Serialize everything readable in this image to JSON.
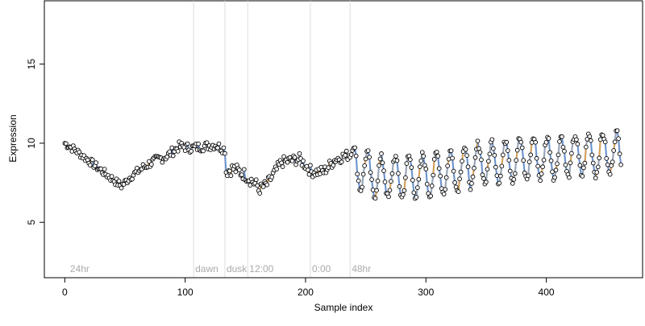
{
  "chart_data": {
    "type": "scatter",
    "xlabel": "Sample index",
    "ylabel": "Expression",
    "xlim": [
      -17,
      480
    ],
    "ylim": [
      1.5,
      19
    ],
    "xticks": [
      0,
      100,
      200,
      300,
      400
    ],
    "yticks": [
      5,
      10,
      15
    ],
    "grid": false,
    "colors": {
      "line": "#9aa6b8",
      "blue": "#5b8fd9",
      "orange": "#f0a030",
      "point_stroke": "#000000",
      "point_fill": "#ffffff",
      "vline": "#dddddd",
      "annotation": "#aaaaaa"
    },
    "annotations": [
      {
        "x": 3,
        "label": "24hr"
      },
      {
        "x": 107,
        "label": "dawn"
      },
      {
        "x": 133,
        "label": "dusk"
      },
      {
        "x": 152,
        "label": "12:00"
      },
      {
        "x": 204,
        "label": "0:00"
      },
      {
        "x": 237,
        "label": "48hr"
      }
    ],
    "vlines": [
      107,
      133,
      152,
      204,
      237
    ],
    "segments": [
      {
        "x0": 0,
        "x1": 60,
        "trend": [
          [
            0,
            10.0
          ],
          [
            8,
            9.6
          ],
          [
            20,
            8.9
          ],
          [
            35,
            8.0
          ],
          [
            47,
            7.3
          ],
          [
            55,
            7.9
          ],
          [
            60,
            8.2
          ]
        ],
        "amp": 0.25
      },
      {
        "x0": 60,
        "x1": 133,
        "trend": [
          [
            60,
            8.2
          ],
          [
            72,
            8.8
          ],
          [
            85,
            9.2
          ],
          [
            95,
            9.8
          ],
          [
            105,
            9.7
          ],
          [
            115,
            9.8
          ],
          [
            125,
            9.9
          ],
          [
            133,
            9.6
          ]
        ],
        "amp": 0.3
      },
      {
        "x0": 133,
        "x1": 160,
        "trend": [
          [
            133,
            8.2
          ],
          [
            140,
            8.4
          ],
          [
            150,
            8.0
          ],
          [
            160,
            7.3
          ]
        ],
        "amp": 0.4
      },
      {
        "x0": 160,
        "x1": 237,
        "trend": [
          [
            160,
            7.0
          ],
          [
            168,
            7.4
          ],
          [
            180,
            8.8
          ],
          [
            195,
            9.0
          ],
          [
            205,
            8.2
          ],
          [
            215,
            8.2
          ],
          [
            225,
            9.0
          ],
          [
            237,
            9.3
          ]
        ],
        "amp": 0.35
      },
      {
        "x0": 237,
        "x1": 462,
        "trend": [
          [
            237,
            8.7
          ],
          [
            260,
            7.8
          ],
          [
            290,
            7.9
          ],
          [
            320,
            8.2
          ],
          [
            350,
            8.8
          ],
          [
            380,
            9.0
          ],
          [
            420,
            9.2
          ],
          [
            462,
            9.4
          ]
        ],
        "amp": 1.3
      }
    ]
  }
}
